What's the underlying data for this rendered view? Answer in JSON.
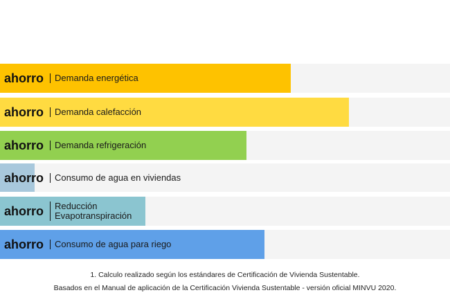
{
  "chart_data": {
    "type": "bar",
    "orientation": "horizontal",
    "prefix": "ahorro",
    "xlim": [
      0,
      100
    ],
    "bars": [
      {
        "label": "Demanda energética",
        "value": 64.6,
        "color": "#FEC200"
      },
      {
        "label": "Demanda calefacción",
        "value": 77.5,
        "color": "#FFDB41"
      },
      {
        "label": "Demanda refrigeración",
        "value": 54.8,
        "color": "#92D050"
      },
      {
        "label": "Consumo de agua en viviendas",
        "value": 7.7,
        "color": "#A8C8DC"
      },
      {
        "label": "Reducción Evapotranspiración",
        "value": 32.3,
        "color": "#8BC5D0"
      },
      {
        "label": "Consumo de agua para riego",
        "value": 58.8,
        "color": "#5FA0E8"
      }
    ]
  },
  "notes": [
    "1. Calculo realizado según los estándares de Certificación de Vivienda Sustentable.",
    "Basados en el Manual de aplicación de la Certificación Vivienda Sustentable - versión oficial MINVU 2020."
  ]
}
